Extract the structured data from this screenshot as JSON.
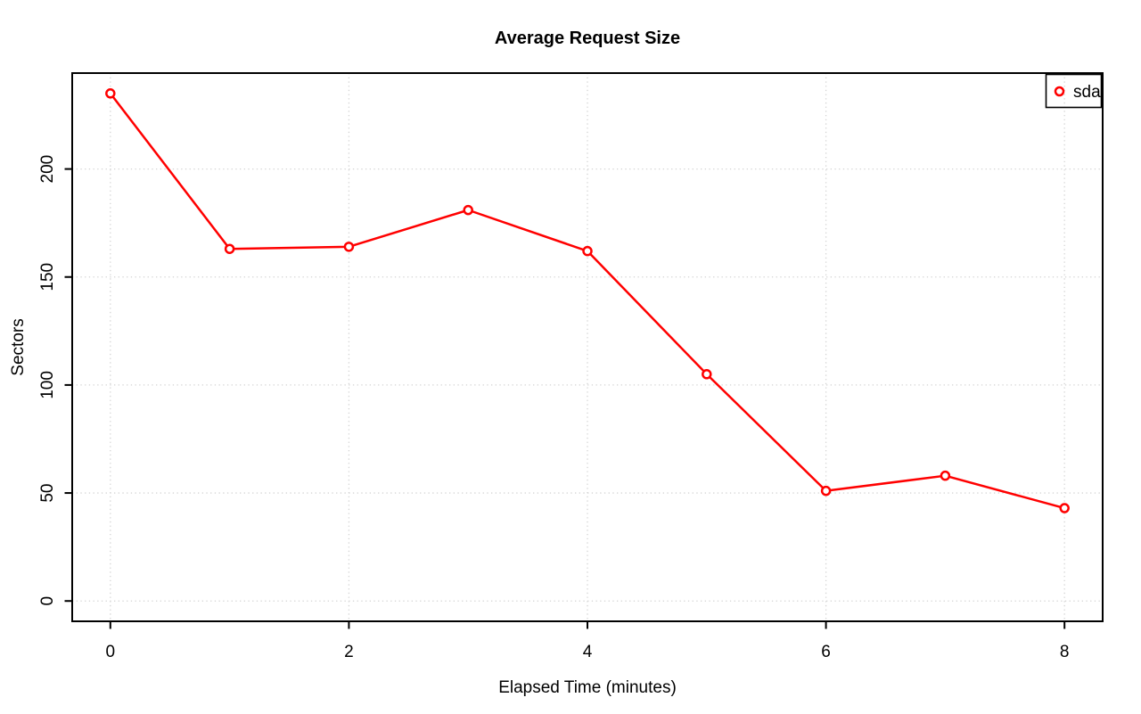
{
  "chart_data": {
    "type": "line",
    "title": "Average Request Size",
    "xlabel": "Elapsed Time (minutes)",
    "ylabel": "Sectors",
    "x": [
      0,
      1,
      2,
      3,
      4,
      5,
      6,
      7,
      8
    ],
    "series": [
      {
        "name": "sda",
        "color": "#ff0000",
        "marker": "open-circle",
        "values": [
          235,
          163,
          164,
          181,
          162,
          105,
          51,
          58,
          43
        ]
      }
    ],
    "x_ticks": [
      0,
      2,
      4,
      6,
      8
    ],
    "y_ticks": [
      0,
      50,
      100,
      150,
      200
    ],
    "xlim": [
      -0.32,
      8.32
    ],
    "ylim": [
      -9.4,
      244.4
    ],
    "grid": {
      "show": true,
      "style": "dotted",
      "color": "#d3d3d3"
    },
    "axis_color": "#000000",
    "background": "#ffffff",
    "legend": {
      "position": "top-right",
      "entries": [
        "sda"
      ]
    }
  }
}
